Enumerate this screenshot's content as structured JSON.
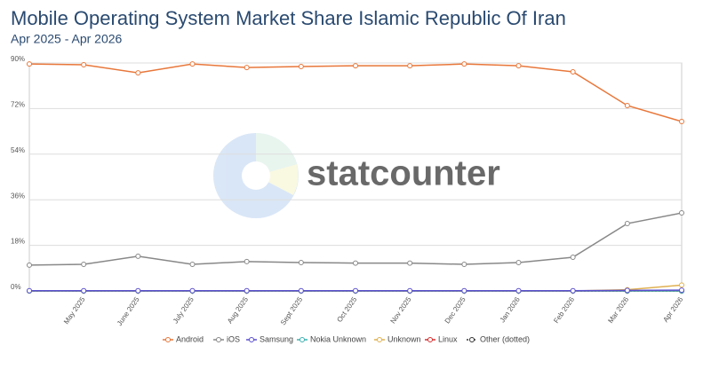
{
  "chart_data": {
    "type": "line",
    "title": "Mobile Operating System Market Share Islamic Republic Of Iran",
    "subtitle": "Apr 2025 - Apr 2026",
    "watermark": "statcounter",
    "categories": [
      null,
      "May 2025",
      "June 2025",
      "July 2025",
      "Aug 2025",
      "Sept 2025",
      "Oct 2025",
      "Nov 2025",
      "Dec 2025",
      "Jan 2026",
      "Feb 2026",
      "Mar 2026",
      "Apr 2026"
    ],
    "ylim": [
      0,
      90
    ],
    "yticks": [
      {
        "value": 0,
        "label": "0%"
      },
      {
        "value": 18,
        "label": "18%"
      },
      {
        "value": 36,
        "label": "36%"
      },
      {
        "value": 54,
        "label": "54%"
      },
      {
        "value": 72,
        "label": "72%"
      },
      {
        "value": 90,
        "label": "90%"
      }
    ],
    "grid": true,
    "legend": "bottom",
    "series": [
      {
        "name": "Android",
        "color": "#e8773a",
        "values": [
          89.6,
          89.3,
          86.1,
          89.6,
          88.2,
          88.6,
          88.9,
          88.9,
          89.6,
          88.9,
          86.5,
          73.2,
          66.9
        ]
      },
      {
        "name": "iOS",
        "color": "#888888",
        "values": [
          10.2,
          10.5,
          13.7,
          10.5,
          11.6,
          11.2,
          11.0,
          11.0,
          10.5,
          11.2,
          13.3,
          26.6,
          30.8
        ]
      },
      {
        "name": "Samsung",
        "color": "#5a4fcf",
        "values": [
          0.1,
          0.1,
          0.1,
          0.1,
          0.1,
          0.1,
          0.1,
          0.1,
          0.1,
          0.1,
          0.1,
          0.2,
          0.3
        ]
      },
      {
        "name": "Nokia Unknown",
        "color": "#3fb0b0",
        "values": [
          0,
          0,
          0,
          0,
          0,
          0,
          0,
          0,
          0,
          0,
          0,
          0,
          0
        ]
      },
      {
        "name": "Unknown",
        "color": "#e0b050",
        "values": [
          0,
          0,
          0,
          0,
          0,
          0,
          0,
          0,
          0,
          0,
          0,
          0.5,
          2.3
        ]
      },
      {
        "name": "Linux",
        "color": "#d63030",
        "values": [
          0,
          0,
          0,
          0,
          0,
          0,
          0,
          0,
          0,
          0,
          0,
          0,
          0
        ]
      },
      {
        "name": "Other (dotted)",
        "color": "#333333",
        "style": "dotted",
        "values": [
          0,
          0,
          0,
          0,
          0,
          0,
          0,
          0,
          0,
          0,
          0,
          0,
          0
        ]
      }
    ]
  }
}
